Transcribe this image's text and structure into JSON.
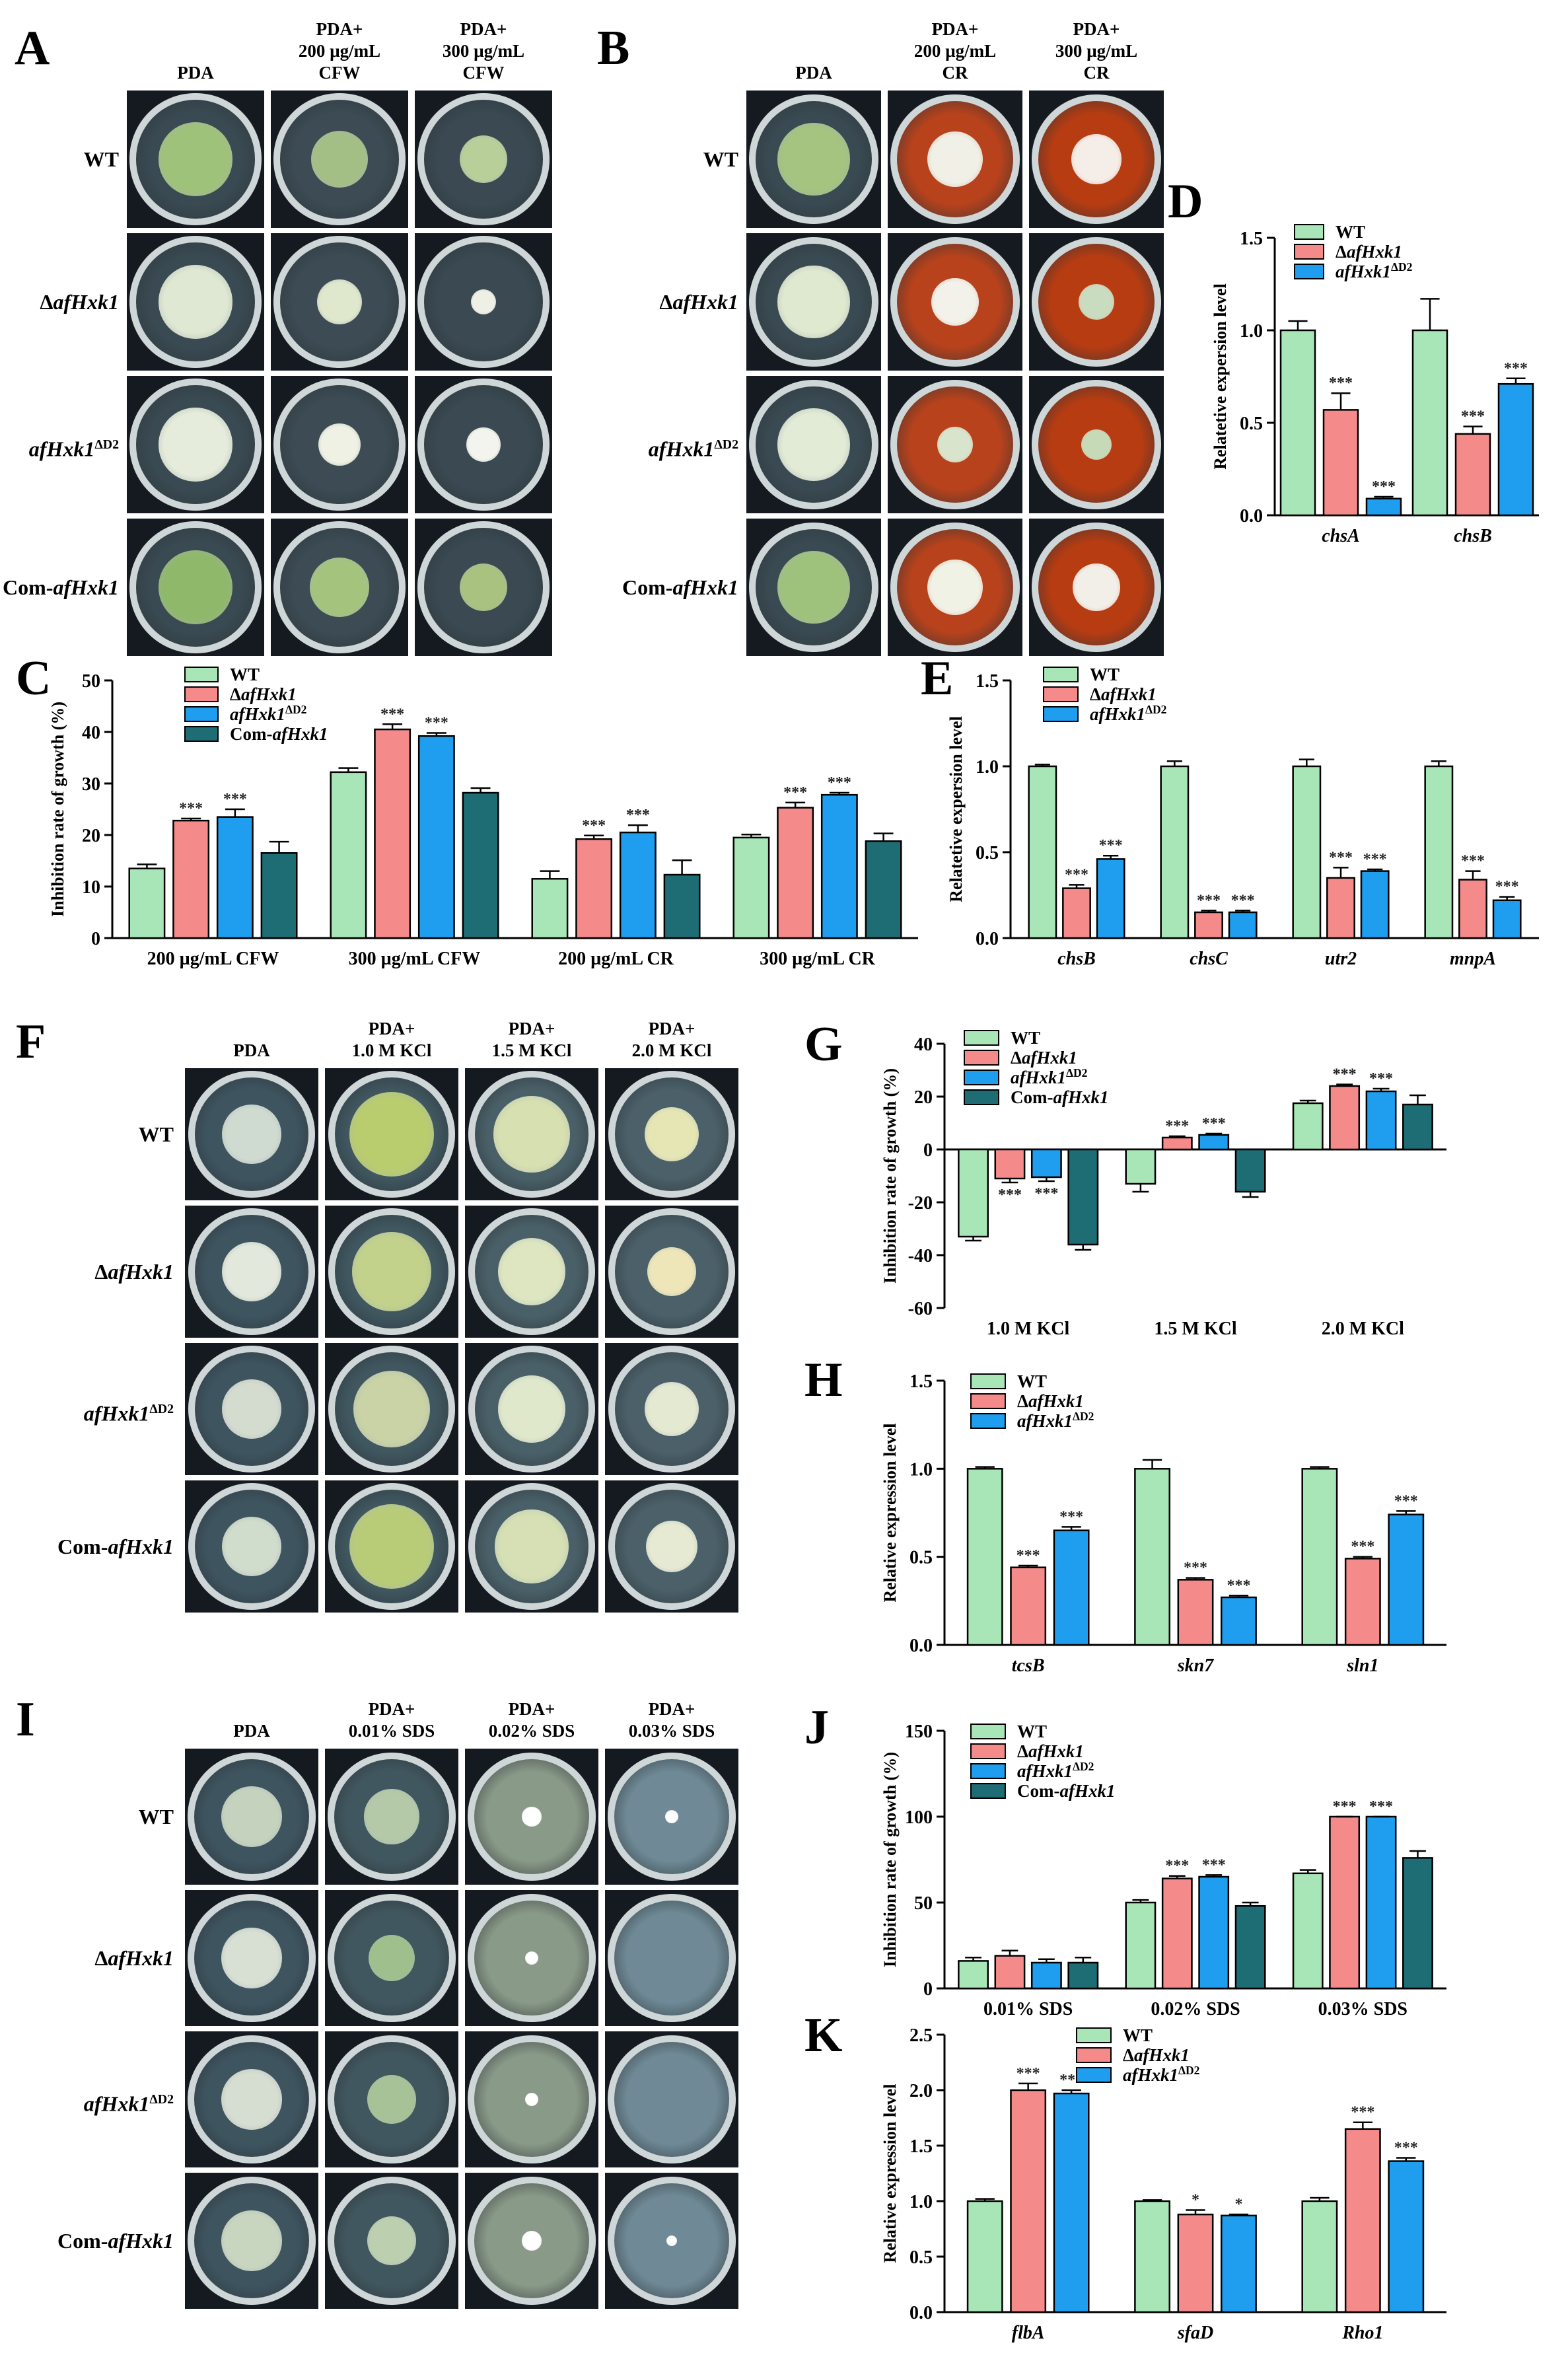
{
  "panel_letters": [
    "A",
    "B",
    "C",
    "D",
    "E",
    "F",
    "G",
    "H",
    "I",
    "J",
    "K"
  ],
  "plates": {
    "A": {
      "columns": [
        "PDA",
        "PDA+\n200 µg/mL\nCFW",
        "PDA+\n300 µg/mL\nCFW"
      ],
      "rows": [
        "WT",
        "ΔafHxk1",
        "afHxk1ΔD2",
        "Com-afHxk1"
      ],
      "medium_colors": [
        "#3a4a52",
        "#3c4b54",
        "#3a4952"
      ]
    },
    "B": {
      "columns": [
        "PDA",
        "PDA+\n200 µg/mL\nCR",
        "PDA+\n300 µg/mL\nCR"
      ],
      "rows": [
        "WT",
        "ΔafHxk1",
        "afHxk1ΔD2",
        "Com-afHxk1"
      ],
      "medium_colors": [
        "#3a4a52",
        "#b8421c",
        "#b83c12"
      ]
    },
    "F": {
      "columns": [
        "PDA",
        "PDA+\n1.0 M KCl",
        "PDA+\n1.5 M KCl",
        "PDA+\n2.0 M KCl"
      ],
      "rows": [
        "WT",
        "ΔafHxk1",
        "afHxk1ΔD2",
        "Com-afHxk1"
      ],
      "medium_colors": [
        "#3e5560",
        "#405760",
        "#4a6068",
        "#4b6069"
      ]
    },
    "I": {
      "columns": [
        "PDA",
        "PDA+\n0.01% SDS",
        "PDA+\n0.02% SDS",
        "PDA+\n0.03% SDS"
      ],
      "rows": [
        "WT",
        "ΔafHxk1",
        "afHxk1ΔD2",
        "Com-afHxk1"
      ],
      "medium_colors": [
        "#3e5560",
        "#41575f",
        "#8a9a88",
        "#6f8a96"
      ]
    }
  },
  "colors": {
    "wt": "#a8e6b8",
    "mut1": "#f48a8a",
    "mut2": "#1f9ef0",
    "com": "#1e6c74"
  },
  "chart_data": [
    {
      "id": "C",
      "type": "bar",
      "ylabel": "Inhibition rate of growth (%)",
      "categories": [
        "200 µg/mL CFW",
        "300 µg/mL CFW",
        "200 µg/mL CR",
        "300 µg/mL CR"
      ],
      "ylim": [
        0,
        50
      ],
      "yticks": [
        0,
        10,
        20,
        30,
        40,
        50
      ],
      "series": [
        {
          "name": "WT",
          "values": [
            13.5,
            32.2,
            11.5,
            19.5
          ],
          "err": [
            0.8,
            0.8,
            1.5,
            0.6
          ],
          "sig": [
            "",
            "",
            "",
            ""
          ]
        },
        {
          "name": "ΔafHxk1",
          "values": [
            22.8,
            40.5,
            19.2,
            25.3
          ],
          "err": [
            0.4,
            1.0,
            0.7,
            1.0
          ],
          "sig": [
            "***",
            "***",
            "***",
            "***"
          ]
        },
        {
          "name": "afHxk1ΔD2",
          "values": [
            23.5,
            39.2,
            20.5,
            27.8
          ],
          "err": [
            1.5,
            0.6,
            1.4,
            0.4
          ],
          "sig": [
            "***",
            "***",
            "***",
            "***"
          ]
        },
        {
          "name": "Com-afHxk1",
          "values": [
            16.5,
            28.2,
            12.3,
            18.8
          ],
          "err": [
            2.2,
            0.9,
            2.8,
            1.5
          ],
          "sig": [
            "",
            "",
            "",
            ""
          ]
        }
      ]
    },
    {
      "id": "D",
      "type": "bar",
      "ylabel": "Relatetive expersion level",
      "categories": [
        "chsA",
        "chsB"
      ],
      "ylim": [
        0,
        1.5
      ],
      "yticks": [
        0.0,
        0.5,
        1.0,
        1.5
      ],
      "series": [
        {
          "name": "WT",
          "values": [
            1.0,
            1.0
          ],
          "err": [
            0.05,
            0.17
          ],
          "sig": [
            "",
            ""
          ]
        },
        {
          "name": "ΔafHxk1",
          "values": [
            0.57,
            0.44
          ],
          "err": [
            0.09,
            0.04
          ],
          "sig": [
            "***",
            "***"
          ]
        },
        {
          "name": "afHxk1ΔD2",
          "values": [
            0.09,
            0.71
          ],
          "err": [
            0.01,
            0.03
          ],
          "sig": [
            "***",
            "***"
          ]
        }
      ]
    },
    {
      "id": "E",
      "type": "bar",
      "ylabel": "Relatetive expersion level",
      "categories": [
        "chsB",
        "chsC",
        "utr2",
        "mnpA"
      ],
      "ylim": [
        0,
        1.5
      ],
      "yticks": [
        0.0,
        0.5,
        1.0,
        1.5
      ],
      "series": [
        {
          "name": "WT",
          "values": [
            1.0,
            1.0,
            1.0,
            1.0
          ],
          "err": [
            0.01,
            0.03,
            0.04,
            0.03
          ],
          "sig": [
            "",
            "",
            "",
            ""
          ]
        },
        {
          "name": "ΔafHxk1",
          "values": [
            0.29,
            0.15,
            0.35,
            0.34
          ],
          "err": [
            0.02,
            0.01,
            0.06,
            0.05
          ],
          "sig": [
            "***",
            "***",
            "***",
            "***"
          ]
        },
        {
          "name": "afHxk1ΔD2",
          "values": [
            0.46,
            0.15,
            0.39,
            0.22
          ],
          "err": [
            0.02,
            0.01,
            0.01,
            0.02
          ],
          "sig": [
            "***",
            "***",
            "***",
            "***"
          ]
        }
      ]
    },
    {
      "id": "G",
      "type": "bar",
      "ylabel": "Inhibition rate of growth (%)",
      "categories": [
        "1.0 M KCl",
        "1.5 M KCl",
        "2.0 M KCl"
      ],
      "ylim": [
        -60,
        40
      ],
      "yticks": [
        -60,
        -40,
        -20,
        0,
        20,
        40
      ],
      "series": [
        {
          "name": "WT",
          "values": [
            -33,
            -13,
            17.5
          ],
          "err": [
            1.5,
            3.0,
            1.0
          ],
          "sig": [
            "",
            "",
            ""
          ]
        },
        {
          "name": "ΔafHxk1",
          "values": [
            -11,
            4.5,
            24
          ],
          "err": [
            1.5,
            0.5,
            0.6
          ],
          "sig": [
            "***",
            "***",
            "***"
          ]
        },
        {
          "name": "afHxk1ΔD2",
          "values": [
            -10.5,
            5.5,
            22
          ],
          "err": [
            1.5,
            0.5,
            1.0
          ],
          "sig": [
            "***",
            "***",
            "***"
          ]
        },
        {
          "name": "Com-afHxk1",
          "values": [
            -36,
            -16,
            17
          ],
          "err": [
            2.0,
            2.0,
            3.5
          ],
          "sig": [
            "",
            "",
            ""
          ]
        }
      ]
    },
    {
      "id": "H",
      "type": "bar",
      "ylabel": "Relative expression level",
      "categories": [
        "tcsB",
        "skn7",
        "sln1"
      ],
      "ylim": [
        0,
        1.5
      ],
      "yticks": [
        0.0,
        0.5,
        1.0,
        1.5
      ],
      "series": [
        {
          "name": "WT",
          "values": [
            1.0,
            1.0,
            1.0
          ],
          "err": [
            0.01,
            0.05,
            0.01
          ],
          "sig": [
            "",
            "",
            ""
          ]
        },
        {
          "name": "ΔafHxk1",
          "values": [
            0.44,
            0.37,
            0.49
          ],
          "err": [
            0.01,
            0.01,
            0.01
          ],
          "sig": [
            "***",
            "***",
            "***"
          ]
        },
        {
          "name": "afHxk1ΔD2",
          "values": [
            0.65,
            0.27,
            0.74
          ],
          "err": [
            0.02,
            0.01,
            0.02
          ],
          "sig": [
            "***",
            "***",
            "***"
          ]
        }
      ]
    },
    {
      "id": "J",
      "type": "bar",
      "ylabel": "Inhibition rate of growth (%)",
      "categories": [
        "0.01% SDS",
        "0.02% SDS",
        "0.03% SDS"
      ],
      "ylim": [
        0,
        150
      ],
      "yticks": [
        0,
        50,
        100,
        150
      ],
      "series": [
        {
          "name": "WT",
          "values": [
            16,
            50,
            67
          ],
          "err": [
            2,
            1.5,
            2
          ],
          "sig": [
            "",
            "",
            ""
          ]
        },
        {
          "name": "ΔafHxk1",
          "values": [
            19,
            64,
            100
          ],
          "err": [
            3,
            1.5,
            0
          ],
          "sig": [
            "",
            "***",
            "***"
          ]
        },
        {
          "name": "afHxk1ΔD2",
          "values": [
            15,
            65,
            100
          ],
          "err": [
            2,
            1,
            0
          ],
          "sig": [
            "",
            "***",
            "***"
          ]
        },
        {
          "name": "Com-afHxk1",
          "values": [
            15,
            48,
            76
          ],
          "err": [
            3,
            2,
            4
          ],
          "sig": [
            "",
            "",
            ""
          ]
        }
      ]
    },
    {
      "id": "K",
      "type": "bar",
      "ylabel": "Relative expression level",
      "categories": [
        "flbA",
        "sfaD",
        "Rho1"
      ],
      "ylim": [
        0,
        2.5
      ],
      "yticks": [
        0.0,
        0.5,
        1.0,
        1.5,
        2.0,
        2.5
      ],
      "series": [
        {
          "name": "WT",
          "values": [
            1.0,
            1.0,
            1.0
          ],
          "err": [
            0.02,
            0.01,
            0.03
          ],
          "sig": [
            "",
            "",
            ""
          ]
        },
        {
          "name": "ΔafHxk1",
          "values": [
            2.0,
            0.88,
            1.65
          ],
          "err": [
            0.06,
            0.04,
            0.06
          ],
          "sig": [
            "***",
            "*",
            "***"
          ]
        },
        {
          "name": "afHxk1ΔD2",
          "values": [
            1.97,
            0.87,
            1.36
          ],
          "err": [
            0.03,
            0.01,
            0.03
          ],
          "sig": [
            "***",
            "*",
            "***"
          ]
        }
      ]
    }
  ]
}
